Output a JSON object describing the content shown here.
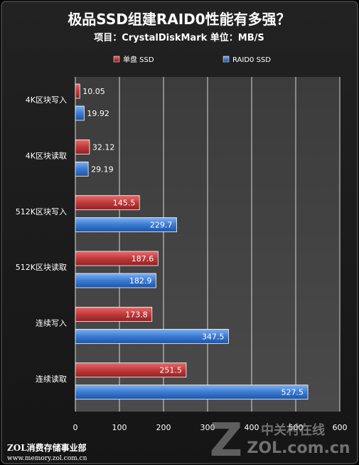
{
  "chart_data": {
    "type": "bar",
    "orientation": "horizontal",
    "title": "极品SSD组建RAID0性能有多强？",
    "subtitle": "项目：CrystalDiskMark   单位：MB/S",
    "categories": [
      "4K区块写入",
      "4K区块读取",
      "512K区块写入",
      "512K区块读取",
      "连续写入",
      "连续读取"
    ],
    "series": [
      {
        "name": "单盘 SSD",
        "color": "#c0393b",
        "values": [
          10.05,
          32.12,
          145.5,
          187.6,
          173.8,
          251.5
        ]
      },
      {
        "name": "RAID0 SSD",
        "color": "#3a7bd5",
        "values": [
          19.92,
          29.19,
          229.7,
          182.9,
          347.5,
          527.5
        ]
      }
    ],
    "xlim": [
      0,
      600
    ],
    "xticks": [
      0,
      100,
      200,
      300,
      400,
      500,
      600
    ],
    "grid": true,
    "legend_position": "top"
  },
  "footer": {
    "line1": "ZOL消费存储事业部",
    "line2": "www.memory.zol.com.cn"
  },
  "watermark": {
    "line1": "中关村在线",
    "line2": "ZOL.com.cn"
  }
}
